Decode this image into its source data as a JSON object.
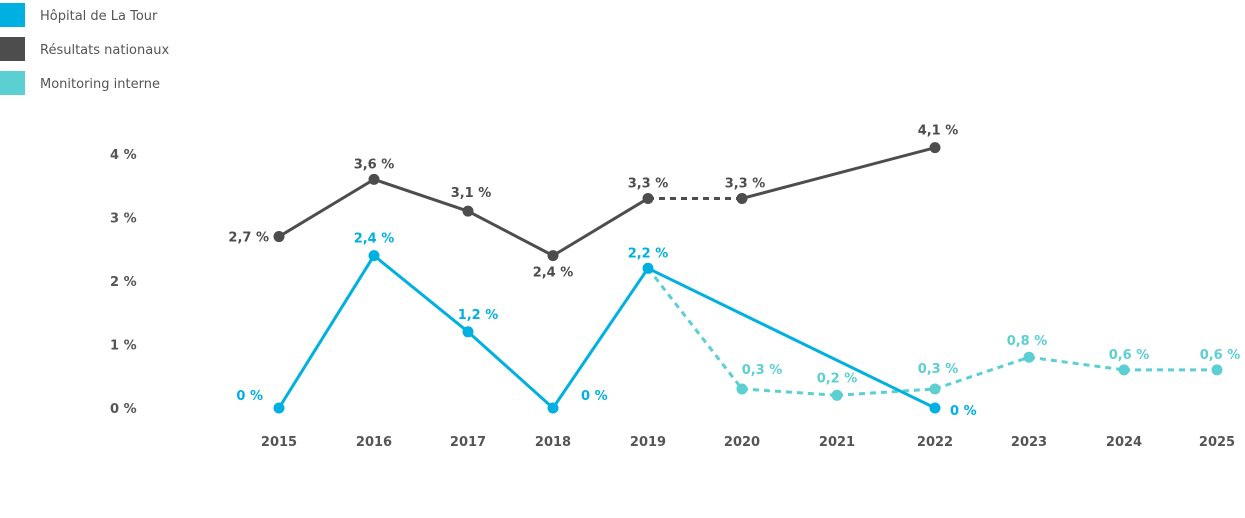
{
  "chart_data": {
    "type": "line",
    "title": "",
    "xlabel": "",
    "ylabel": "",
    "categories": [
      "2015",
      "2016",
      "2017",
      "2018",
      "2019",
      "2020",
      "2021",
      "2022",
      "2023",
      "2024",
      "2025"
    ],
    "ylim": [
      0,
      4
    ],
    "yticks": [
      0,
      1,
      2,
      3,
      4
    ],
    "ytick_labels": [
      "0 %",
      "1 %",
      "2 %",
      "3 %",
      "4 %"
    ],
    "grid": false,
    "legend_position": "top-left",
    "series": [
      {
        "name": "Hôpital de La Tour",
        "color": "#00b0e0",
        "style": "solid",
        "points": [
          {
            "x": "2015",
            "y": 0,
            "label": "0 %"
          },
          {
            "x": "2016",
            "y": 2.4,
            "label": "2,4 %"
          },
          {
            "x": "2017",
            "y": 1.2,
            "label": "1,2 %"
          },
          {
            "x": "2018",
            "y": 0,
            "label": "0 %"
          },
          {
            "x": "2019",
            "y": 2.2,
            "label": "2,2 %"
          },
          {
            "x": "2022",
            "y": 0,
            "label": "0 %"
          }
        ]
      },
      {
        "name": "Résultats nationaux",
        "color": "#4d4d4d",
        "style": "solid",
        "dashed_segments": [
          [
            "2019",
            "2020"
          ]
        ],
        "points": [
          {
            "x": "2015",
            "y": 2.7,
            "label": "2,7 %"
          },
          {
            "x": "2016",
            "y": 3.6,
            "label": "3,6 %"
          },
          {
            "x": "2017",
            "y": 3.1,
            "label": "3,1 %"
          },
          {
            "x": "2018",
            "y": 2.4,
            "label": "2,4 %"
          },
          {
            "x": "2019",
            "y": 3.3,
            "label": "3,3 %"
          },
          {
            "x": "2020",
            "y": 3.3,
            "label": "3,3 %"
          },
          {
            "x": "2022",
            "y": 4.1,
            "label": "4,1 %"
          }
        ]
      },
      {
        "name": "Monitoring interne",
        "color": "#5ccfd2",
        "style": "dashed",
        "points": [
          {
            "x": "2019",
            "y": 2.2,
            "label": ""
          },
          {
            "x": "2020",
            "y": 0.3,
            "label": "0,3 %"
          },
          {
            "x": "2021",
            "y": 0.2,
            "label": "0,2 %"
          },
          {
            "x": "2022",
            "y": 0.3,
            "label": "0,3 %"
          },
          {
            "x": "2023",
            "y": 0.8,
            "label": "0,8 %"
          },
          {
            "x": "2024",
            "y": 0.6,
            "label": "0,6 %"
          },
          {
            "x": "2025",
            "y": 0.6,
            "label": "0,6 %"
          }
        ]
      }
    ]
  }
}
